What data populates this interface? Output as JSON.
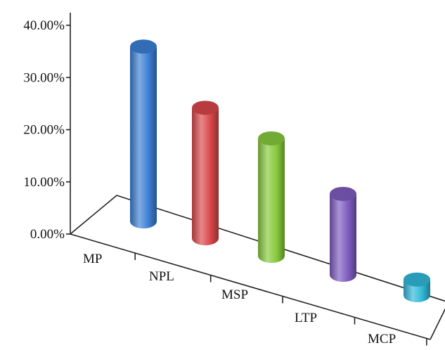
{
  "chart_data": {
    "type": "bar",
    "style": "3d-cylinder",
    "categories": [
      "MP",
      "NPL",
      "MSP",
      "LTP",
      "MCP"
    ],
    "values": [
      33.5,
      25.0,
      22.5,
      15.5,
      3.0
    ],
    "colors": [
      "#3b7fd4",
      "#d9474a",
      "#86c93c",
      "#7e5bbf",
      "#2fb8d8"
    ],
    "title": "",
    "xlabel": "",
    "ylabel": "",
    "ylim": [
      0,
      40
    ],
    "yticks": [
      "0.00%",
      "10.00%",
      "20.00%",
      "30.00%",
      "40.00%"
    ],
    "grid": false,
    "legend": "none"
  }
}
